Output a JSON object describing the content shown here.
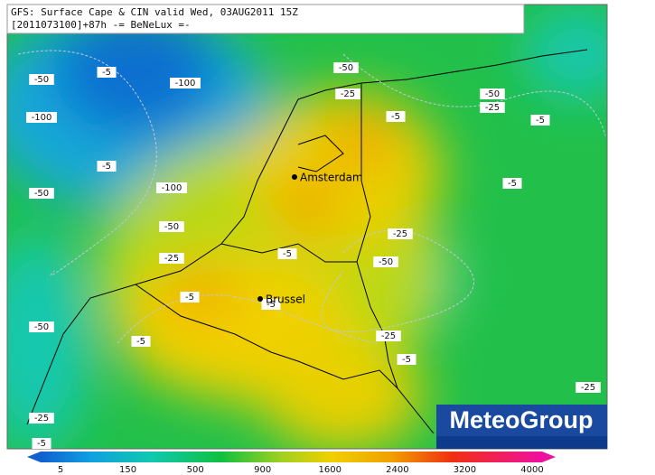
{
  "header": {
    "line1": "GFS: Surface Cape & CIN valid Wed, 03AUG2011 15Z",
    "line2": "[2011073100]+87h -= BeNeLux =-"
  },
  "cities": [
    "Amsterdam",
    "Brussel"
  ],
  "contour_labels": [
    "-50",
    "-5",
    "-100",
    "-50",
    "-25",
    "-50",
    "-25",
    "-5",
    "-5",
    "-100",
    "-5",
    "-100",
    "-50",
    "-5",
    "-50",
    "-25",
    "-5",
    "-25",
    "-50",
    "-5",
    "-5",
    "-50",
    "-5",
    "-25",
    "-5",
    "-25",
    "-25",
    "-5"
  ],
  "colorbar": {
    "labels": [
      "5",
      "150",
      "500",
      "900",
      "1600",
      "2400",
      "3200",
      "4000"
    ]
  },
  "logo": "MeteoGroup"
}
